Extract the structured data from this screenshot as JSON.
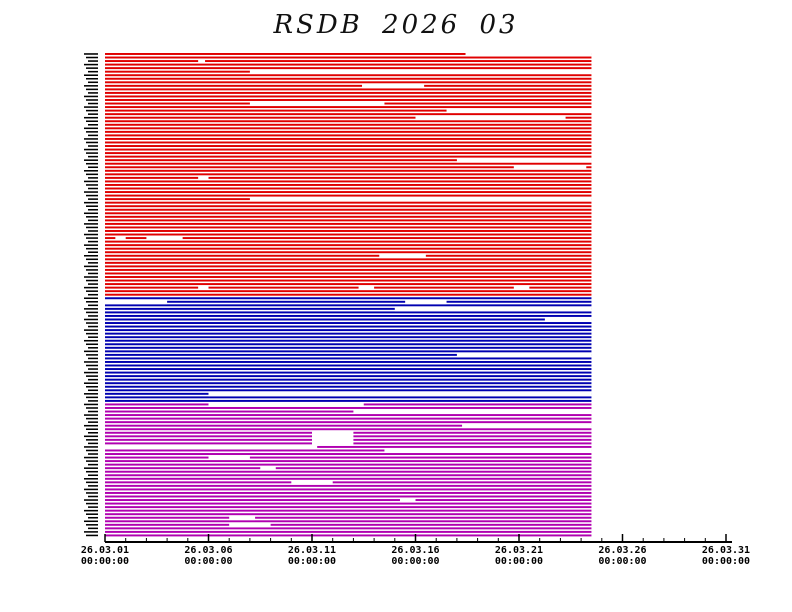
{
  "title": "RSDB  2026  03",
  "colors": {
    "group_a": "#e00000",
    "group_b": "#0000b0",
    "group_c": "#b000b0",
    "axis": "#000000"
  },
  "chart_data": {
    "type": "timeline",
    "title": "RSDB  2026  03",
    "x_axis": {
      "range": [
        "2026-03-01 00:00:00",
        "2026-03-31 00:00:00"
      ],
      "ticks": [
        {
          "date": "2026-03-01",
          "line1": "26.03.01",
          "line2": "00:00:00"
        },
        {
          "date": "2026-03-06",
          "line1": "26.03.06",
          "line2": "00:00:00"
        },
        {
          "date": "2026-03-11",
          "line1": "26.03.11",
          "line2": "00:00:00"
        },
        {
          "date": "2026-03-16",
          "line1": "26.03.16",
          "line2": "00:00:00"
        },
        {
          "date": "2026-03-21",
          "line1": "26.03.21",
          "line2": "00:00:00"
        },
        {
          "date": "2026-03-26",
          "line1": "26.03.26",
          "line2": "00:00:00"
        },
        {
          "date": "2026-03-31",
          "line1": "26.03.31",
          "line2": "00:00:00"
        }
      ]
    },
    "data_end": "2026-03-24 12:00:00",
    "series": [
      {
        "color": "group_a",
        "rows": 69
      },
      {
        "color": "group_b",
        "rows": 30
      },
      {
        "color": "group_c",
        "rows": 38
      }
    ],
    "gaps": [
      {
        "row": 0,
        "from": "2026-03-18 10:00",
        "to": "2026-03-24 12:00"
      },
      {
        "row": 2,
        "from": "2026-03-05 12:00",
        "to": "2026-03-05 20:00"
      },
      {
        "row": 5,
        "from": "2026-03-08 00:00",
        "to": "2026-03-24 12:00"
      },
      {
        "row": 9,
        "from": "2026-03-13 10:00",
        "to": "2026-03-16 10:00"
      },
      {
        "row": 14,
        "from": "2026-03-08 00:00",
        "to": "2026-03-14 12:00"
      },
      {
        "row": 16,
        "from": "2026-03-17 12:00",
        "to": "2026-03-24 12:00"
      },
      {
        "row": 18,
        "from": "2026-03-16 00:00",
        "to": "2026-03-23 06:00"
      },
      {
        "row": 30,
        "from": "2026-03-18 00:00",
        "to": "2026-03-24 12:00"
      },
      {
        "row": 32,
        "from": "2026-03-20 18:00",
        "to": "2026-03-24 06:00"
      },
      {
        "row": 35,
        "from": "2026-03-05 12:00",
        "to": "2026-03-06 00:00"
      },
      {
        "row": 41,
        "from": "2026-03-08 00:00",
        "to": "2026-03-24 12:00"
      },
      {
        "row": 52,
        "from": "2026-03-01 12:00",
        "to": "2026-03-02 00:00"
      },
      {
        "row": 52,
        "from": "2026-03-03 00:00",
        "to": "2026-03-04 18:00"
      },
      {
        "row": 57,
        "from": "2026-03-14 06:00",
        "to": "2026-03-16 12:00"
      },
      {
        "row": 66,
        "from": "2026-03-05 12:00",
        "to": "2026-03-06 00:00"
      },
      {
        "row": 66,
        "from": "2026-03-13 06:00",
        "to": "2026-03-14 00:00"
      },
      {
        "row": 66,
        "from": "2026-03-20 18:00",
        "to": "2026-03-21 12:00"
      },
      {
        "row": 70,
        "from": "2026-03-01 00:00",
        "to": "2026-03-04 00:00"
      },
      {
        "row": 70,
        "from": "2026-03-15 12:00",
        "to": "2026-03-17 12:00"
      },
      {
        "row": 72,
        "from": "2026-03-15 00:00",
        "to": "2026-03-24 12:00"
      },
      {
        "row": 75,
        "from": "2026-03-22 06:00",
        "to": "2026-03-24 12:00"
      },
      {
        "row": 85,
        "from": "2026-03-18 00:00",
        "to": "2026-03-24 12:00"
      },
      {
        "row": 96,
        "from": "2026-03-06 00:00",
        "to": "2026-03-24 12:00"
      },
      {
        "row": 99,
        "from": "2026-03-06 00:00",
        "to": "2026-03-13 12:00"
      },
      {
        "row": 101,
        "from": "2026-03-13 00:00",
        "to": "2026-03-24 12:00"
      },
      {
        "row": 105,
        "from": "2026-03-18 06:00",
        "to": "2026-03-24 12:00"
      },
      {
        "row": 107,
        "from": "2026-03-11 00:00",
        "to": "2026-03-13 00:00"
      },
      {
        "row": 108,
        "from": "2026-03-11 00:00",
        "to": "2026-03-13 00:00"
      },
      {
        "row": 109,
        "from": "2026-03-11 00:00",
        "to": "2026-03-13 00:00"
      },
      {
        "row": 110,
        "from": "2026-03-11 00:00",
        "to": "2026-03-13 00:00"
      },
      {
        "row": 111,
        "from": "2026-03-01 00:00",
        "to": "2026-03-11 06:00"
      },
      {
        "row": 112,
        "from": "2026-03-14 12:00",
        "to": "2026-03-24 12:00"
      },
      {
        "row": 114,
        "from": "2026-03-06 00:00",
        "to": "2026-03-08 00:00"
      },
      {
        "row": 117,
        "from": "2026-03-08 12:00",
        "to": "2026-03-09 06:00"
      },
      {
        "row": 121,
        "from": "2026-03-10 00:00",
        "to": "2026-03-12 00:00"
      },
      {
        "row": 126,
        "from": "2026-03-15 06:00",
        "to": "2026-03-16 00:00"
      },
      {
        "row": 131,
        "from": "2026-03-07 00:00",
        "to": "2026-03-08 06:00"
      },
      {
        "row": 133,
        "from": "2026-03-07 00:00",
        "to": "2026-03-09 00:00"
      }
    ]
  }
}
